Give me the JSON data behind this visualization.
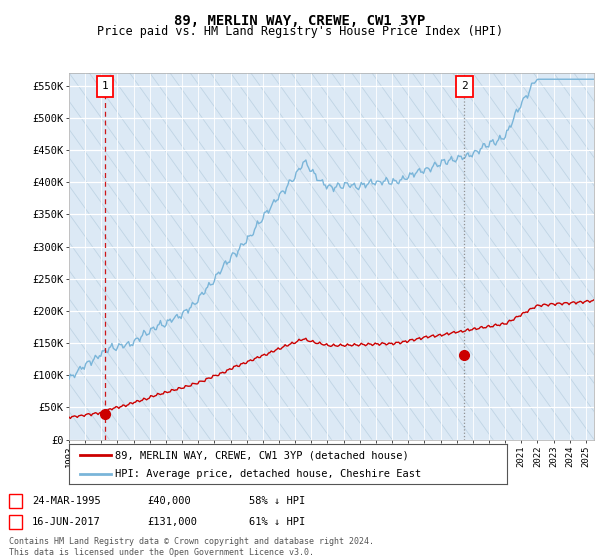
{
  "title": "89, MERLIN WAY, CREWE, CW1 3YP",
  "subtitle": "Price paid vs. HM Land Registry's House Price Index (HPI)",
  "title_fontsize": 10,
  "subtitle_fontsize": 8.5,
  "ylabel_ticks": [
    "£0",
    "£50K",
    "£100K",
    "£150K",
    "£200K",
    "£250K",
    "£300K",
    "£350K",
    "£400K",
    "£450K",
    "£500K",
    "£550K"
  ],
  "ytick_values": [
    0,
    50000,
    100000,
    150000,
    200000,
    250000,
    300000,
    350000,
    400000,
    450000,
    500000,
    550000
  ],
  "ylim": [
    0,
    570000
  ],
  "xlim_start": 1993.0,
  "xlim_end": 2025.5,
  "xtick_years": [
    1993,
    1994,
    1995,
    1996,
    1997,
    1998,
    1999,
    2000,
    2001,
    2002,
    2003,
    2004,
    2005,
    2006,
    2007,
    2008,
    2009,
    2010,
    2011,
    2012,
    2013,
    2014,
    2015,
    2016,
    2017,
    2018,
    2019,
    2020,
    2021,
    2022,
    2023,
    2024,
    2025
  ],
  "sale1_x": 1995.23,
  "sale1_y": 40000,
  "sale2_x": 2017.46,
  "sale2_y": 131000,
  "bg_color": "#dce9f5",
  "hatch_color": "#b8cfe0",
  "grid_color": "#ffffff",
  "hpi_color": "#7ab5d9",
  "price_color": "#cc0000",
  "vline1_style": "--",
  "vline2_style": ":",
  "legend_label_price": "89, MERLIN WAY, CREWE, CW1 3YP (detached house)",
  "legend_label_hpi": "HPI: Average price, detached house, Cheshire East",
  "note1_label": "1",
  "note1_date": "24-MAR-1995",
  "note1_price": "£40,000",
  "note1_hpi": "58% ↓ HPI",
  "note2_label": "2",
  "note2_date": "16-JUN-2017",
  "note2_price": "£131,000",
  "note2_hpi": "61% ↓ HPI",
  "copyright": "Contains HM Land Registry data © Crown copyright and database right 2024.\nThis data is licensed under the Open Government Licence v3.0."
}
